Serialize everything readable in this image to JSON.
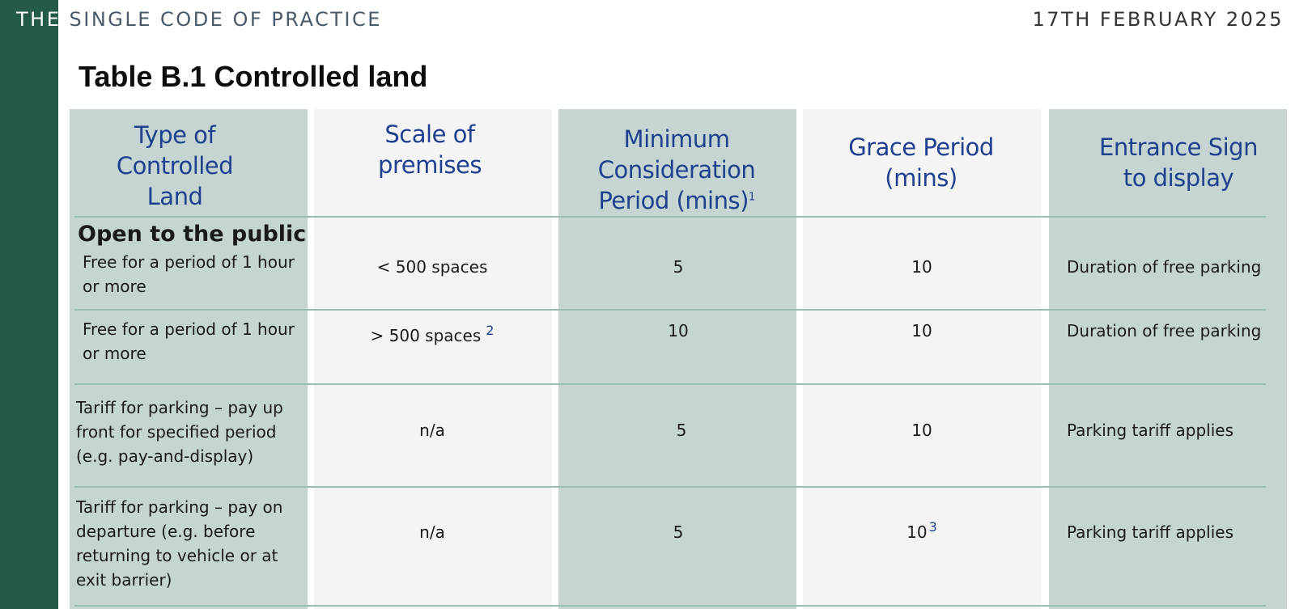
{
  "header": {
    "prefix": "THE",
    "doc_title": "SINGLE CODE OF PRACTICE",
    "date": "17TH FEBRUARY 2025"
  },
  "table": {
    "title": "Table B.1 Controlled land",
    "columns": [
      "Type of Controlled Land",
      "Scale of premises",
      "Minimum Consideration Period (mins)",
      "Grace Period (mins)",
      "Entrance Sign to display"
    ],
    "column_footnotes": {
      "min_consideration": "1"
    },
    "section_heading": "Open to the public",
    "rows": [
      {
        "type": "Free for a period of 1 hour or more",
        "scale": "< 500 spaces",
        "scale_footnote": "",
        "min_period": "5",
        "grace": "10",
        "grace_footnote": "",
        "sign": "Duration of free parking"
      },
      {
        "type": "Free for a period of 1 hour or more",
        "scale": "> 500 spaces",
        "scale_footnote": "2",
        "min_period": "10",
        "grace": "10",
        "grace_footnote": "",
        "sign": "Duration of free parking"
      },
      {
        "type": "Tariff for parking – pay up front for specified period (e.g. pay-and-display)",
        "scale": "n/a",
        "scale_footnote": "",
        "min_period": "5",
        "grace": "10",
        "grace_footnote": "",
        "sign": "Parking tariff applies"
      },
      {
        "type": "Tariff for parking – pay on departure (e.g. before returning to vehicle or at exit barrier)",
        "scale": "n/a",
        "scale_footnote": "",
        "min_period": "5",
        "grace": "10",
        "grace_footnote": "3",
        "sign": "Parking tariff applies"
      }
    ]
  }
}
